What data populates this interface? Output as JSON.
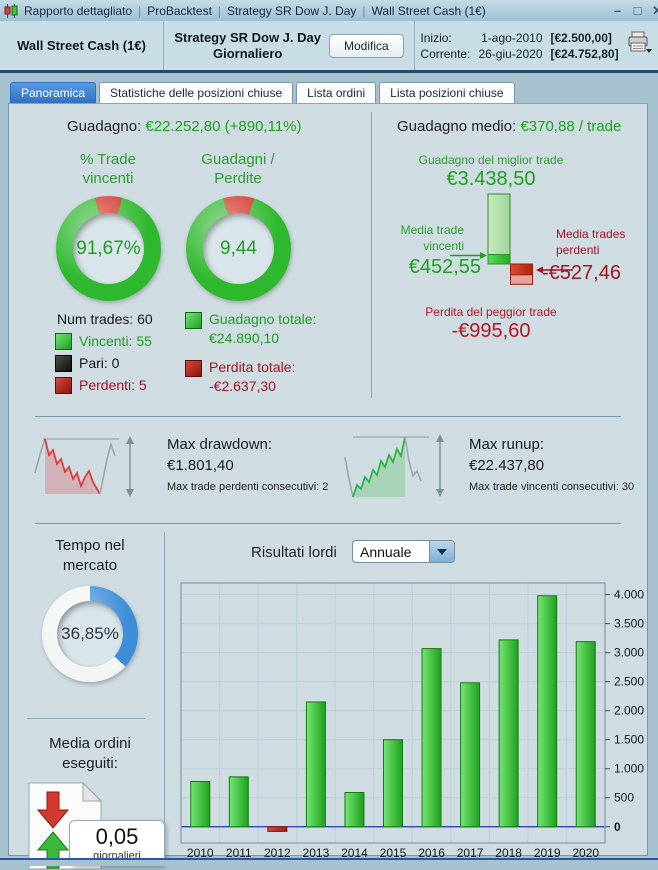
{
  "titlebar": {
    "parts": [
      "Rapporto dettagliato",
      "ProBacktest",
      "Strategy SR Dow J. Day",
      "Wall Street Cash (1€)"
    ],
    "separator": "|",
    "controls": {
      "minimize": "–",
      "maximize": "❐",
      "close": "✕"
    }
  },
  "header": {
    "instrument": "Wall Street Cash (1€)",
    "strategy": "Strategy SR Dow J. Day",
    "timeframe": "Giornaliero",
    "modify": "Modifica",
    "start_label": "Inizio:",
    "start_date": "1-ago-2010",
    "start_value": "[€2.500,00]",
    "current_label": "Corrente:",
    "current_date": "26-giu-2020",
    "current_value": "[€24.752,80]"
  },
  "tabs": [
    {
      "label": "Panoramica",
      "active": true
    },
    {
      "label": "Statistiche delle posizioni chiuse",
      "active": false
    },
    {
      "label": "Lista ordini",
      "active": false
    },
    {
      "label": "Lista posizioni chiuse",
      "active": false
    }
  ],
  "overview": {
    "gain_label": "Guadagno:",
    "gain_value": "€22.252,80 (+890,11%)",
    "avg_label": "Guadagno medio:",
    "avg_value": "€370,88 / trade",
    "win_donut": {
      "title1": "% Trade",
      "title2": "vincenti",
      "center": "91,67%",
      "pct": 91.67
    },
    "gl_donut": {
      "title1": "Guadagni /",
      "title2": "Perdite",
      "center": "9,44",
      "ratio": 9.44
    },
    "legend": {
      "num": "Num trades: 60",
      "win": "Vincenti: 55",
      "even": "Pari: 0",
      "lose": "Perdenti: 5"
    },
    "totals": {
      "gain_label": "Guadagno totale:",
      "gain_value": "€24.890,10",
      "loss_label": "Perdita totale:",
      "loss_value": "-€2.637,30"
    },
    "best": {
      "label": "Guadagno del miglior trade",
      "value": "€3.438,50",
      "num": 3438.5
    },
    "avg_win": {
      "line1": "Media trade",
      "line2": "vincenti",
      "value": "€452,55",
      "num": 452.55
    },
    "avg_loss": {
      "line1": "Media trades",
      "line2": "perdenti",
      "value": "-€527,46",
      "num": -527.46
    },
    "worst": {
      "label": "Perdita del peggior trade",
      "value": "-€995,60",
      "num": -995.6
    }
  },
  "drawdown": {
    "label": "Max drawdown:",
    "value": "€1.801,40",
    "sub": "Max trade perdenti consecutivi:  2"
  },
  "runup": {
    "label": "Max runup:",
    "value": "€22.437,80",
    "sub": "Max trade vincenti consecutivi: 30"
  },
  "tempo": {
    "title1": "Tempo nel",
    "title2": "mercato",
    "center": "36,85%",
    "pct": 36.85
  },
  "orders": {
    "title1": "Media ordini",
    "title2": "eseguiti:",
    "value": "0,05",
    "unit": "giornalieri"
  },
  "results": {
    "label": "Risultati lordi",
    "period": "Annuale"
  },
  "chart_data": {
    "type": "bar",
    "title": "Risultati lordi (Annuale)",
    "categories": [
      "2010",
      "2011",
      "2012",
      "2013",
      "2014",
      "2015",
      "2016",
      "2017",
      "2018",
      "2019",
      "2020"
    ],
    "values": [
      780,
      860,
      -80,
      2150,
      590,
      1500,
      3070,
      2480,
      3220,
      3980,
      3190
    ],
    "yticks": [
      0,
      500,
      1000,
      1500,
      2000,
      2500,
      3000,
      3500,
      4000
    ],
    "ytick_labels": [
      "0",
      "500",
      "1.000",
      "1.500",
      "2.000",
      "2.500",
      "3.000",
      "3.500",
      "4.000"
    ],
    "ylim": [
      -280,
      4200
    ],
    "grid": true,
    "legend_position": "none",
    "ylabel_side": "right",
    "xlabel": "",
    "ylabel": ""
  },
  "colors": {
    "positive_bar": "#2eb82e",
    "negative_bar": "#cc2a1a",
    "green_text": "#1ca21c",
    "red_text": "#a01626",
    "blue_arc": "#3d8ed8",
    "zero_line": "#2233bb",
    "grid_line": "#bccfda",
    "active_tab": "#2f6fc4"
  }
}
